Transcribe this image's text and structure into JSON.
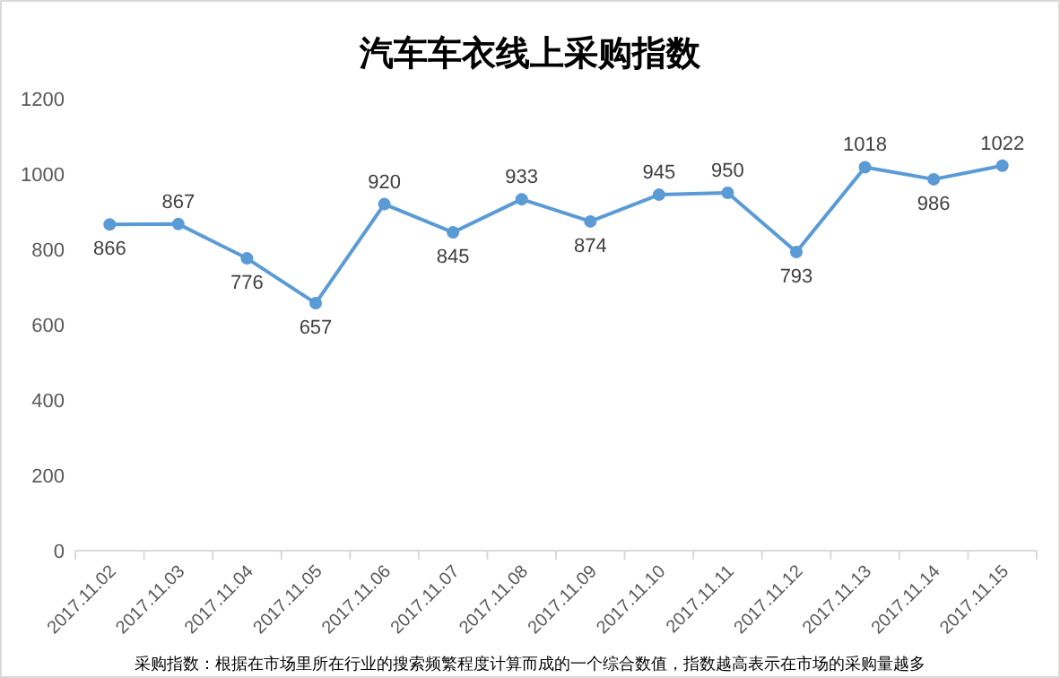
{
  "chart_data": {
    "type": "line",
    "title": "汽车车衣线上采购指数",
    "categories": [
      "2017.11.02",
      "2017.11.03",
      "2017.11.04",
      "2017.11.05",
      "2017.11.06",
      "2017.11.07",
      "2017.11.08",
      "2017.11.09",
      "2017.11.10",
      "2017.11.11",
      "2017.11.12",
      "2017.11.13",
      "2017.11.14",
      "2017.11.15"
    ],
    "series": [
      {
        "color": "#5b9bd5",
        "values": [
          866,
          867,
          776,
          657,
          920,
          845,
          933,
          874,
          945,
          950,
          793,
          1018,
          986,
          1022
        ]
      }
    ],
    "ylim": [
      0,
      1200
    ],
    "yticks": [
      0,
      200,
      400,
      600,
      800,
      1000,
      1200
    ],
    "grid": false,
    "marker": "circle",
    "line_style": "solid",
    "data_labels": true,
    "annotations": [
      "采购指数：根据在市场里所在行业的搜索频繁程度计算而成的一个综合数值，指数越高表示在市场的采购量越多"
    ]
  }
}
